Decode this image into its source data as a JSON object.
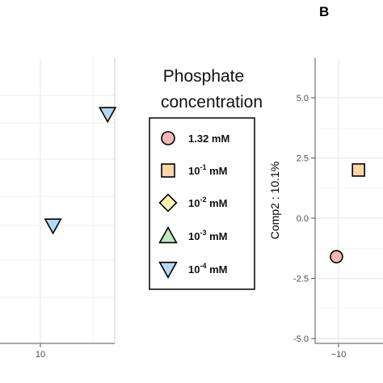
{
  "panel_label": "B",
  "legend": {
    "title_line1": "Phosphate",
    "title_line2": "concentration",
    "entries": [
      {
        "label": "1.32 mM",
        "shape": "circle",
        "color": "#f4b6b6"
      },
      {
        "label": "10",
        "exp": "-1",
        "unit": " mM",
        "shape": "square",
        "color": "#f9d5a7"
      },
      {
        "label": "10",
        "exp": "-2",
        "unit": " mM",
        "shape": "diamond",
        "color": "#fbf3b0"
      },
      {
        "label": "10",
        "exp": "-3",
        "unit": " mM",
        "shape": "triangle-up",
        "color": "#bfe8bf"
      },
      {
        "label": "10",
        "exp": "-4",
        "unit": " mM",
        "shape": "triangle-down",
        "color": "#b5d9f2"
      }
    ]
  },
  "chart_data": [
    {
      "type": "scatter",
      "panel": "left (partial)",
      "xlabel": "",
      "ylabel": "",
      "x_ticks": [
        "10"
      ],
      "grid": true,
      "points": [
        {
          "x": 13.2,
          "y_rank": "upper",
          "group": "10-4 mM"
        },
        {
          "x": 10.6,
          "y_rank": "lower",
          "group": "10-4 mM"
        }
      ]
    },
    {
      "type": "scatter",
      "panel": "B",
      "xlabel": "",
      "ylabel": "Comp2 : 10.1%",
      "ylim": [
        -5.2,
        6.5
      ],
      "y_ticks": [
        "5.0",
        "2.5",
        "0.0",
        "-2.5",
        "-5.0"
      ],
      "x_ticks": [
        "−10"
      ],
      "grid": true,
      "points": [
        {
          "x": -10.2,
          "y": -1.6,
          "group": "1.32 mM"
        },
        {
          "x": -8.1,
          "y": 2.0,
          "group": "10-1 mM"
        }
      ]
    }
  ]
}
